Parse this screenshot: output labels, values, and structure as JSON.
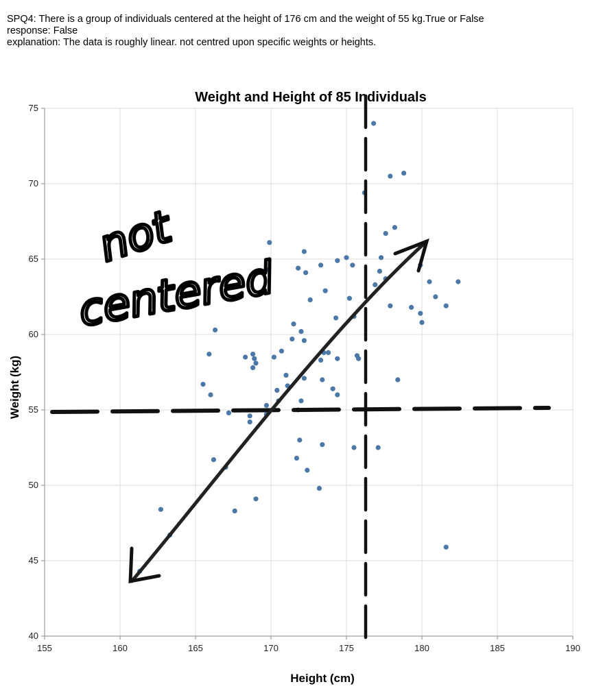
{
  "question": {
    "prompt": "SPQ4: There is a group of individuals centered at the height of 176 cm and the weight of 55 kg.True or False",
    "response": "response: False",
    "explanation": "explanation: The data is roughly linear. not centred upon specific weights or heights."
  },
  "chart_data": {
    "type": "scatter",
    "title": "Weight and Height of 85 Individuals",
    "xlabel": "Height (cm)",
    "ylabel": "Weight (kg)",
    "xlim": [
      155,
      190
    ],
    "ylim": [
      40,
      75
    ],
    "xticks": [
      "155",
      "160",
      "165",
      "170",
      "175",
      "180",
      "185",
      "190"
    ],
    "yticks": [
      "40",
      "45",
      "50",
      "55",
      "60",
      "65",
      "70",
      "75"
    ],
    "grid": true,
    "point_color": "#4c78a8",
    "points": [
      [
        176.8,
        74.0
      ],
      [
        177.9,
        70.5
      ],
      [
        178.8,
        70.7
      ],
      [
        176.2,
        69.4
      ],
      [
        178.2,
        67.1
      ],
      [
        177.6,
        66.7
      ],
      [
        169.9,
        66.1
      ],
      [
        172.2,
        65.5
      ],
      [
        173.3,
        64.6
      ],
      [
        174.4,
        64.9
      ],
      [
        175.0,
        65.1
      ],
      [
        175.4,
        64.6
      ],
      [
        177.3,
        65.1
      ],
      [
        179.9,
        64.6
      ],
      [
        169.7,
        64.3
      ],
      [
        171.8,
        64.4
      ],
      [
        172.3,
        64.1
      ],
      [
        177.2,
        64.2
      ],
      [
        177.6,
        63.7
      ],
      [
        176.9,
        63.3
      ],
      [
        180.5,
        63.5
      ],
      [
        182.4,
        63.5
      ],
      [
        173.6,
        62.9
      ],
      [
        180.9,
        62.5
      ],
      [
        172.6,
        62.3
      ],
      [
        175.2,
        62.4
      ],
      [
        177.9,
        61.9
      ],
      [
        179.3,
        61.8
      ],
      [
        181.6,
        61.9
      ],
      [
        179.9,
        61.4
      ],
      [
        174.3,
        61.1
      ],
      [
        175.5,
        61.2
      ],
      [
        180.0,
        60.8
      ],
      [
        171.5,
        60.7
      ],
      [
        166.3,
        60.3
      ],
      [
        172.0,
        60.2
      ],
      [
        171.4,
        59.7
      ],
      [
        172.2,
        59.6
      ],
      [
        170.7,
        58.9
      ],
      [
        173.5,
        58.8
      ],
      [
        173.8,
        58.8
      ],
      [
        165.9,
        58.7
      ],
      [
        168.8,
        58.7
      ],
      [
        168.3,
        58.5
      ],
      [
        170.2,
        58.5
      ],
      [
        168.9,
        58.4
      ],
      [
        175.7,
        58.6
      ],
      [
        175.8,
        58.4
      ],
      [
        173.3,
        58.3
      ],
      [
        174.4,
        58.4
      ],
      [
        169.0,
        58.1
      ],
      [
        168.8,
        57.8
      ],
      [
        171.0,
        57.3
      ],
      [
        172.2,
        57.1
      ],
      [
        173.4,
        57.0
      ],
      [
        178.4,
        57.0
      ],
      [
        165.5,
        56.7
      ],
      [
        171.1,
        56.6
      ],
      [
        174.1,
        56.4
      ],
      [
        170.4,
        56.3
      ],
      [
        166.0,
        56.0
      ],
      [
        174.4,
        56.0
      ],
      [
        172.0,
        55.6
      ],
      [
        170.5,
        55.6
      ],
      [
        169.7,
        55.3
      ],
      [
        171.8,
        55.0
      ],
      [
        167.2,
        54.8
      ],
      [
        169.7,
        54.7
      ],
      [
        168.6,
        54.6
      ],
      [
        168.6,
        54.2
      ],
      [
        171.9,
        53.0
      ],
      [
        173.4,
        52.7
      ],
      [
        175.5,
        52.5
      ],
      [
        177.1,
        52.5
      ],
      [
        171.7,
        51.8
      ],
      [
        166.2,
        51.7
      ],
      [
        167.0,
        51.2
      ],
      [
        172.4,
        51.0
      ],
      [
        173.2,
        49.8
      ],
      [
        169.0,
        49.1
      ],
      [
        162.7,
        48.4
      ],
      [
        167.6,
        48.3
      ],
      [
        163.3,
        46.7
      ],
      [
        181.6,
        45.9
      ],
      [
        161.3,
        44.3
      ]
    ]
  },
  "annotation": {
    "line1": "not",
    "line2": "centered"
  }
}
